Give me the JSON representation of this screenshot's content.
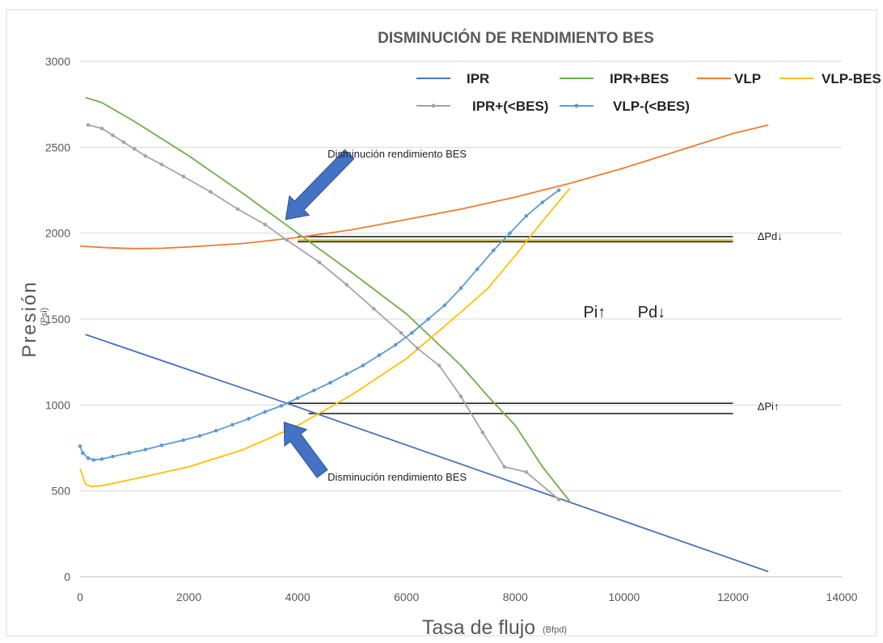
{
  "chart_data": {
    "type": "line",
    "title": "DISMINUCIÓN DE RENDIMIENTO BES",
    "xlabel": "Tasa de flujo",
    "xlabel_unit": "(Bfpd)",
    "ylabel": "Presión",
    "ylabel_unit": "(Psi)",
    "xlim": [
      0,
      14000
    ],
    "ylim": [
      0,
      3000
    ],
    "xticks": [
      0,
      2000,
      4000,
      6000,
      8000,
      10000,
      12000,
      14000
    ],
    "yticks": [
      0,
      500,
      1000,
      1500,
      2000,
      2500,
      3000
    ],
    "grid": "horizontal",
    "legend_position": "top-right",
    "colors": {
      "ipr": "#4a72b8",
      "ipr_bes": "#70ad47",
      "vlp": "#ed7d31",
      "vlp_bes": "#ffc000",
      "ipr_less_bes": "#a5a5a5",
      "vlp_less_bes": "#5b9bd5",
      "arrow": "#4472c4",
      "ref_line": "#000000"
    },
    "series": [
      {
        "name": "IPR",
        "color": "#4a72b8",
        "markers": false,
        "x": [
          100,
          3800,
          12650
        ],
        "y": [
          1410,
          1010,
          30
        ]
      },
      {
        "name": "IPR+BES",
        "color": "#70ad47",
        "markers": false,
        "x": [
          100,
          400,
          1000,
          2000,
          3000,
          4000,
          5000,
          6000,
          7000,
          7500,
          8000,
          8500,
          9000
        ],
        "y": [
          2790,
          2760,
          2650,
          2450,
          2230,
          2000,
          1770,
          1530,
          1230,
          1050,
          880,
          640,
          440
        ]
      },
      {
        "name": "VLP",
        "color": "#ed7d31",
        "markers": false,
        "x": [
          0,
          500,
          1000,
          1500,
          2000,
          3000,
          4000,
          5000,
          6000,
          7000,
          8000,
          9000,
          10000,
          11000,
          12000,
          12650
        ],
        "y": [
          1925,
          1915,
          1910,
          1912,
          1920,
          1940,
          1975,
          2020,
          2080,
          2140,
          2210,
          2290,
          2380,
          2480,
          2580,
          2630
        ]
      },
      {
        "name": "VLP-BES",
        "color": "#ffc000",
        "markers": false,
        "x": [
          0,
          100,
          200,
          400,
          1000,
          2000,
          3000,
          4000,
          5000,
          6000,
          7000,
          7500,
          8000,
          8500,
          9000
        ],
        "y": [
          630,
          540,
          525,
          530,
          570,
          640,
          740,
          880,
          1060,
          1270,
          1540,
          1680,
          1870,
          2070,
          2260
        ]
      },
      {
        "name": "IPR+(<BES)",
        "color": "#a5a5a5",
        "markers": true,
        "x": [
          150,
          400,
          600,
          800,
          1000,
          1200,
          1500,
          1900,
          2400,
          2900,
          3400,
          3800,
          4400,
          4900,
          5400,
          5900,
          6200,
          6600,
          7000,
          7400,
          7800,
          8200,
          8800
        ],
        "y": [
          2630,
          2610,
          2570,
          2530,
          2490,
          2450,
          2400,
          2330,
          2240,
          2140,
          2050,
          1960,
          1830,
          1700,
          1560,
          1420,
          1330,
          1230,
          1050,
          840,
          640,
          610,
          450
        ]
      },
      {
        "name": "VLP-(<BES)",
        "color": "#5b9bd5",
        "markers": true,
        "x": [
          0,
          50,
          150,
          250,
          400,
          600,
          900,
          1200,
          1500,
          1900,
          2200,
          2500,
          2800,
          3100,
          3400,
          3700,
          4000,
          4300,
          4600,
          4900,
          5200,
          5500,
          5800,
          6100,
          6400,
          6700,
          7000,
          7300,
          7600,
          7900,
          8200,
          8500,
          8800
        ],
        "y": [
          760,
          720,
          690,
          680,
          685,
          700,
          720,
          740,
          765,
          795,
          820,
          850,
          885,
          920,
          960,
          995,
          1040,
          1085,
          1130,
          1180,
          1230,
          1290,
          1350,
          1420,
          1500,
          1580,
          1680,
          1790,
          1900,
          2000,
          2100,
          2180,
          2250
        ]
      }
    ],
    "reference_lines": [
      {
        "y": 1980,
        "x_start": 4000,
        "x_end": 12000,
        "color": "#000000"
      },
      {
        "y": 1960,
        "x_start": 4000,
        "x_end": 12000,
        "color": "#c9a400"
      },
      {
        "y": 1950,
        "x_start": 4000,
        "x_end": 12000,
        "color": "#000000"
      },
      {
        "y": 1010,
        "x_start": 3800,
        "x_end": 12000,
        "color": "#000000"
      },
      {
        "y": 950,
        "x_start": 4200,
        "x_end": 12000,
        "color": "#000000"
      }
    ],
    "annotations": [
      {
        "text": "Disminución rendimiento BES",
        "x": 4550,
        "y": 2440,
        "kind": "label"
      },
      {
        "text": "Disminución rendimiento BES",
        "x": 4550,
        "y": 560,
        "kind": "label"
      },
      {
        "text": "ΔPd↓",
        "x": 12450,
        "y": 1960,
        "kind": "label"
      },
      {
        "text": "ΔPi↑",
        "x": 12450,
        "y": 970,
        "kind": "label"
      },
      {
        "text": "Pi↑",
        "x": 9250,
        "y": 1510,
        "kind": "big"
      },
      {
        "text": "Pd↓",
        "x": 10250,
        "y": 1510,
        "kind": "big"
      }
    ],
    "arrows": [
      {
        "from_x": 4950,
        "from_y": 2460,
        "to_x": 3780,
        "to_y": 2080
      },
      {
        "from_x": 4450,
        "from_y": 600,
        "to_x": 3750,
        "to_y": 900
      }
    ]
  }
}
